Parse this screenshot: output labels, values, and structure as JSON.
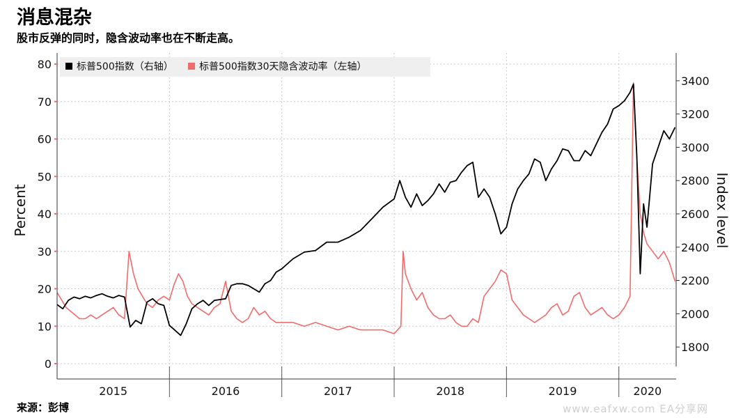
{
  "header": {
    "title": "消息混杂",
    "subtitle": "股市反弹的同时，隐含波动率也在不断走高。"
  },
  "footer": {
    "source": "来源：彭博",
    "watermark": "www.eafxw.com  EA分享网"
  },
  "colors": {
    "spx": "#000000",
    "vol": "#f06b6b",
    "grid": "#c8c8c8",
    "legend_bg": "#efefef"
  },
  "chart_data": {
    "type": "line",
    "title": "",
    "ylabel_left": "Percent",
    "ylabel_right": "Index level",
    "xlim": [
      2015.0,
      2020.51
    ],
    "ylim_left": [
      0,
      80
    ],
    "ylim_right": [
      1700,
      3500
    ],
    "yticks_left": [
      0,
      10,
      20,
      30,
      40,
      50,
      60,
      70,
      80
    ],
    "yticks_right": [
      1800,
      2000,
      2200,
      2400,
      2600,
      2800,
      3000,
      3200,
      3400
    ],
    "x_tick_labels": [
      "2015",
      "2016",
      "2017",
      "2018",
      "2019",
      "2020"
    ],
    "year_boundaries": [
      2016.0,
      2017.0,
      2018.0,
      2019.0,
      2020.0
    ],
    "grid": true,
    "legend_position": "top-left",
    "legend": [
      "标普500指数（右轴）",
      "标普500指数30天隐含波动率（左轴）"
    ],
    "series": [
      {
        "name": "标普500指数（右轴）",
        "axis": "right",
        "color": "#000000",
        "x": [
          2015.0,
          2015.05,
          2015.1,
          2015.15,
          2015.2,
          2015.25,
          2015.3,
          2015.35,
          2015.4,
          2015.45,
          2015.5,
          2015.55,
          2015.6,
          2015.65,
          2015.7,
          2015.75,
          2015.8,
          2015.85,
          2015.9,
          2015.95,
          2016.0,
          2016.05,
          2016.1,
          2016.15,
          2016.2,
          2016.25,
          2016.3,
          2016.35,
          2016.4,
          2016.45,
          2016.5,
          2016.55,
          2016.6,
          2016.65,
          2016.7,
          2016.75,
          2016.8,
          2016.85,
          2016.9,
          2016.95,
          2017.0,
          2017.1,
          2017.2,
          2017.3,
          2017.4,
          2017.5,
          2017.6,
          2017.7,
          2017.8,
          2017.9,
          2018.0,
          2018.05,
          2018.1,
          2018.15,
          2018.2,
          2018.25,
          2018.3,
          2018.35,
          2018.4,
          2018.45,
          2018.5,
          2018.55,
          2018.6,
          2018.65,
          2018.7,
          2018.75,
          2018.8,
          2018.85,
          2018.9,
          2018.95,
          2019.0,
          2019.05,
          2019.1,
          2019.15,
          2019.2,
          2019.25,
          2019.3,
          2019.35,
          2019.4,
          2019.45,
          2019.5,
          2019.55,
          2019.6,
          2019.65,
          2019.7,
          2019.75,
          2019.8,
          2019.85,
          2019.9,
          2019.95,
          2020.0,
          2020.05,
          2020.1,
          2020.13,
          2020.16,
          2020.19,
          2020.22,
          2020.25,
          2020.3,
          2020.35,
          2020.4,
          2020.45,
          2020.5
        ],
        "y": [
          2055,
          2030,
          2080,
          2100,
          2090,
          2105,
          2095,
          2110,
          2120,
          2105,
          2095,
          2110,
          2100,
          1920,
          1960,
          1940,
          2070,
          2090,
          2060,
          2050,
          1930,
          1900,
          1870,
          1940,
          2030,
          2060,
          2080,
          2050,
          2080,
          2085,
          2090,
          2170,
          2180,
          2180,
          2170,
          2150,
          2130,
          2180,
          2200,
          2250,
          2270,
          2330,
          2370,
          2380,
          2430,
          2430,
          2460,
          2500,
          2570,
          2640,
          2690,
          2800,
          2700,
          2640,
          2720,
          2650,
          2680,
          2720,
          2780,
          2730,
          2790,
          2800,
          2850,
          2890,
          2910,
          2700,
          2750,
          2700,
          2600,
          2480,
          2520,
          2660,
          2750,
          2800,
          2840,
          2930,
          2910,
          2800,
          2870,
          2920,
          2990,
          2980,
          2920,
          2920,
          2980,
          2950,
          3020,
          3090,
          3140,
          3230,
          3250,
          3280,
          3330,
          3380,
          2950,
          2240,
          2660,
          2520,
          2900,
          3000,
          3100,
          3050,
          3120
        ]
      },
      {
        "name": "标普500指数30天隐含波动率（左轴）",
        "axis": "left",
        "color": "#f06b6b",
        "x": [
          2015.0,
          2015.04,
          2015.08,
          2015.12,
          2015.16,
          2015.2,
          2015.25,
          2015.3,
          2015.35,
          2015.4,
          2015.45,
          2015.5,
          2015.55,
          2015.6,
          2015.64,
          2015.68,
          2015.72,
          2015.76,
          2015.8,
          2015.85,
          2015.9,
          2015.95,
          2016.0,
          2016.04,
          2016.08,
          2016.12,
          2016.16,
          2016.2,
          2016.25,
          2016.3,
          2016.35,
          2016.4,
          2016.45,
          2016.5,
          2016.55,
          2016.6,
          2016.65,
          2016.7,
          2016.75,
          2016.8,
          2016.85,
          2016.9,
          2016.95,
          2017.0,
          2017.1,
          2017.2,
          2017.3,
          2017.4,
          2017.5,
          2017.6,
          2017.7,
          2017.8,
          2017.9,
          2018.0,
          2018.06,
          2018.08,
          2018.1,
          2018.15,
          2018.2,
          2018.25,
          2018.3,
          2018.35,
          2018.4,
          2018.45,
          2018.5,
          2018.55,
          2018.6,
          2018.65,
          2018.7,
          2018.75,
          2018.8,
          2018.85,
          2018.9,
          2018.95,
          2019.0,
          2019.05,
          2019.1,
          2019.15,
          2019.2,
          2019.25,
          2019.3,
          2019.35,
          2019.4,
          2019.45,
          2019.5,
          2019.55,
          2019.6,
          2019.65,
          2019.7,
          2019.75,
          2019.8,
          2019.85,
          2019.9,
          2019.95,
          2020.0,
          2020.05,
          2020.1,
          2020.13,
          2020.16,
          2020.19,
          2020.22,
          2020.25,
          2020.3,
          2020.35,
          2020.4,
          2020.45,
          2020.5
        ],
        "y": [
          19,
          17,
          15,
          14,
          13,
          12,
          12,
          13,
          12,
          13,
          14,
          15,
          13,
          12,
          30,
          24,
          20,
          18,
          16,
          15,
          17,
          18,
          17,
          21,
          24,
          22,
          18,
          16,
          15,
          14,
          13,
          15,
          16,
          22,
          14,
          12,
          11,
          12,
          15,
          13,
          14,
          12,
          11,
          11,
          11,
          10,
          11,
          10,
          9,
          10,
          9,
          9,
          9,
          8,
          10,
          30,
          24,
          20,
          17,
          19,
          15,
          13,
          12,
          12,
          13,
          11,
          10,
          10,
          12,
          11,
          18,
          20,
          22,
          25,
          24,
          17,
          15,
          13,
          12,
          11,
          12,
          13,
          15,
          16,
          13,
          14,
          18,
          19,
          15,
          13,
          14,
          15,
          13,
          12,
          13,
          15,
          18,
          75,
          55,
          40,
          35,
          32,
          30,
          28,
          30,
          27,
          22
        ]
      }
    ]
  }
}
